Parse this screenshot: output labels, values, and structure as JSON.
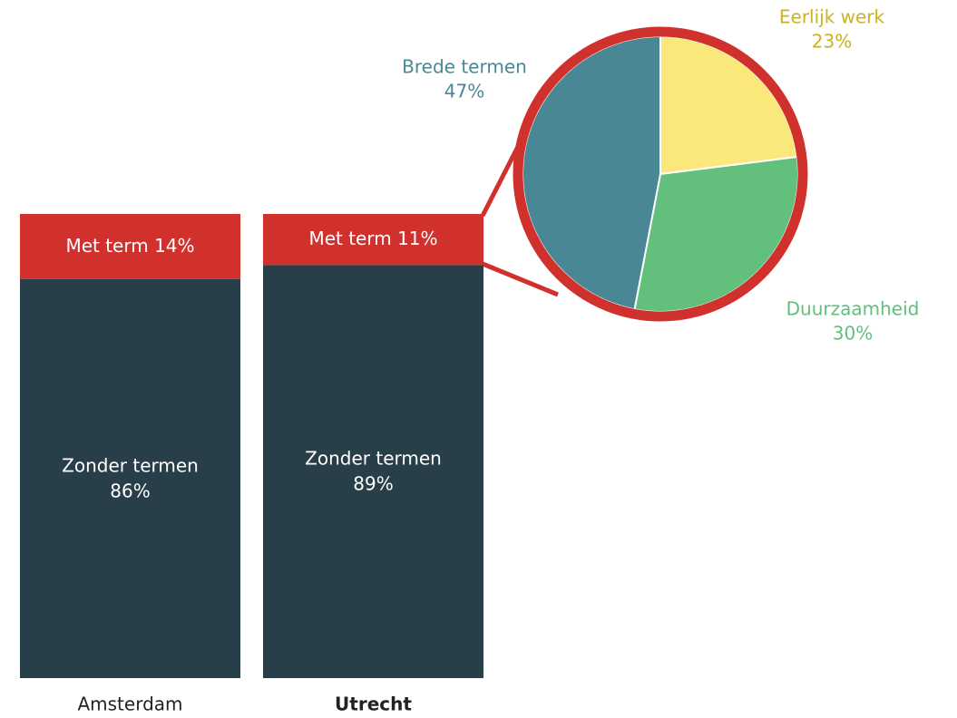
{
  "chart_data": [
    {
      "type": "stacked-bar",
      "categories": [
        "Amsterdam",
        "Utrecht"
      ],
      "series": [
        {
          "name": "Zonder termen",
          "color": "#283f4a",
          "values": [
            86,
            89
          ],
          "value_labels": [
            "86%",
            "89%"
          ]
        },
        {
          "name": "Met term",
          "color": "#d0312d",
          "values": [
            14,
            11
          ],
          "value_labels": [
            "14%",
            "11%"
          ]
        }
      ]
    },
    {
      "type": "pie",
      "categories": [
        "Eerlijk werk",
        "Duurzaamheid",
        "Brede termen"
      ],
      "values": [
        23,
        30,
        47
      ],
      "value_labels": [
        "23%",
        "30%",
        "47%"
      ],
      "colors": [
        "#fae97a",
        "#62bf7c",
        "#4a8794"
      ],
      "label_colors": [
        "#c9b31e",
        "#62bf7c",
        "#4a8794"
      ],
      "border_color": "#d0312d"
    }
  ]
}
